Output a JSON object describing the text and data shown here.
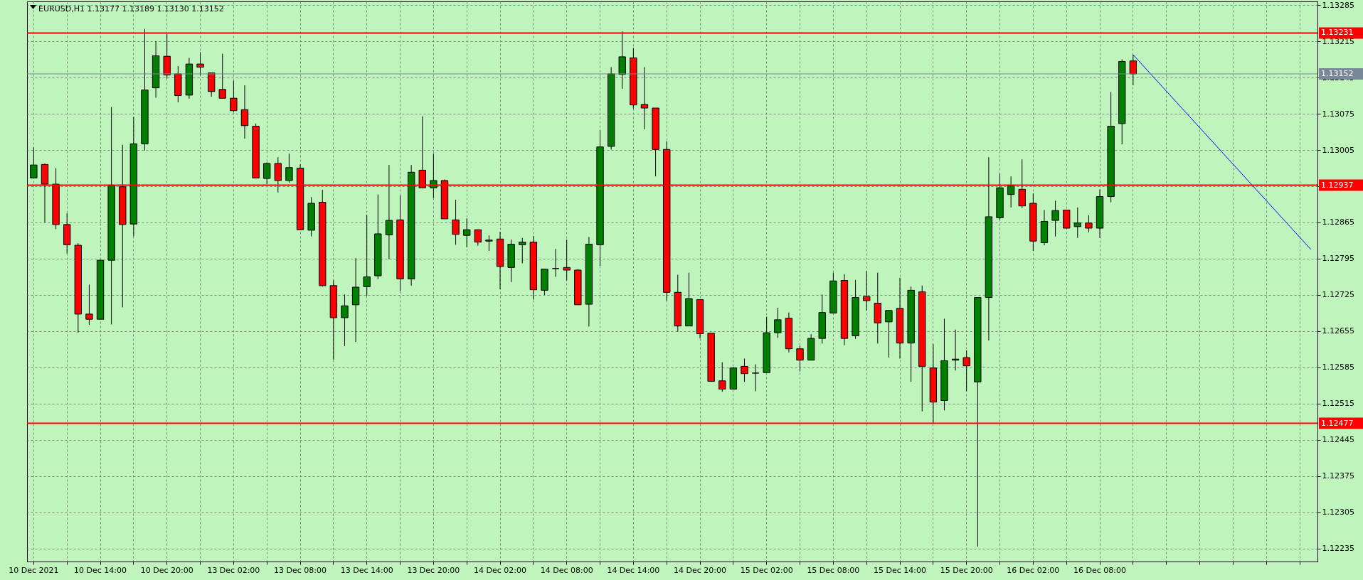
{
  "chart_data": {
    "type": "candlestick",
    "title": "EURUSD,H1  1.13177 1.13189 1.13130 1.13152",
    "categories": [
      "10 Dec 2021",
      null,
      null,
      null,
      null,
      null,
      "10 Dec 14:00",
      null,
      null,
      null,
      null,
      null,
      "10 Dec 20:00",
      null,
      null,
      null,
      null,
      null,
      "13 Dec 02:00",
      null,
      null,
      null,
      null,
      null,
      "13 Dec 08:00",
      null,
      null,
      null,
      null,
      null,
      "13 Dec 14:00",
      null,
      null,
      null,
      null,
      null,
      "13 Dec 20:00",
      null,
      null,
      null,
      null,
      null,
      "14 Dec 02:00",
      null,
      null,
      null,
      null,
      null,
      "14 Dec 08:00",
      null,
      null,
      null,
      null,
      null,
      "14 Dec 14:00",
      null,
      null,
      null,
      null,
      null,
      "14 Dec 20:00",
      null,
      null,
      null,
      null,
      null,
      "15 Dec 02:00",
      null,
      null,
      null,
      null,
      null,
      "15 Dec 08:00",
      null,
      null,
      null,
      null,
      null,
      "15 Dec 14:00",
      null,
      null,
      null,
      null,
      null,
      "15 Dec 20:00",
      null,
      null,
      null,
      null,
      null,
      "16 Dec 02:00",
      null,
      null,
      null,
      null,
      null,
      "16 Dec 08:00",
      null,
      null,
      null,
      null,
      null,
      null,
      null,
      null,
      null,
      null,
      null,
      null,
      null,
      null,
      null,
      null,
      null,
      null,
      null
    ],
    "ohlc": [
      [
        1.12951,
        1.1301,
        1.12951,
        1.12976
      ],
      [
        1.12977,
        1.12979,
        1.12865,
        1.12939
      ],
      [
        1.12939,
        1.1297,
        1.12852,
        1.12861
      ],
      [
        1.12861,
        1.12883,
        1.12805,
        1.12822
      ],
      [
        1.12821,
        1.12825,
        1.12652,
        1.12688
      ],
      [
        1.12688,
        1.12745,
        1.12667,
        1.12678
      ],
      [
        1.12678,
        1.12792,
        1.12678,
        1.12792
      ],
      [
        1.12792,
        1.13088,
        1.12668,
        1.12936
      ],
      [
        1.12934,
        1.13015,
        1.12701,
        1.12861
      ],
      [
        1.12862,
        1.13069,
        1.12838,
        1.13017
      ],
      [
        1.13017,
        1.13239,
        1.13004,
        1.13121
      ],
      [
        1.13125,
        1.13215,
        1.13106,
        1.13187
      ],
      [
        1.13186,
        1.13229,
        1.13143,
        1.1315
      ],
      [
        1.13152,
        1.13167,
        1.13097,
        1.1311
      ],
      [
        1.13111,
        1.13183,
        1.13104,
        1.13171
      ],
      [
        1.13171,
        1.13194,
        1.13149,
        1.13165
      ],
      [
        1.13154,
        1.13154,
        1.13108,
        1.13118
      ],
      [
        1.13122,
        1.13191,
        1.13105,
        1.13105
      ],
      [
        1.13105,
        1.13139,
        1.13078,
        1.13081
      ],
      [
        1.13083,
        1.1313,
        1.13027,
        1.13052
      ],
      [
        1.13051,
        1.13056,
        1.12951,
        1.12951
      ],
      [
        1.1295,
        1.12981,
        1.12939,
        1.12979
      ],
      [
        1.12979,
        1.12991,
        1.12923,
        1.12946
      ],
      [
        1.12946,
        1.12998,
        1.12942,
        1.12971
      ],
      [
        1.1297,
        1.12977,
        1.12851,
        1.12851
      ],
      [
        1.1285,
        1.12914,
        1.12838,
        1.12902
      ],
      [
        1.12904,
        1.12928,
        1.12741,
        1.12743
      ],
      [
        1.12743,
        1.12753,
        1.126,
        1.12681
      ],
      [
        1.12681,
        1.12726,
        1.12626,
        1.12704
      ],
      [
        1.12706,
        1.12796,
        1.12634,
        1.1274
      ],
      [
        1.12741,
        1.1288,
        1.12723,
        1.1276
      ],
      [
        1.12762,
        1.12919,
        1.12756,
        1.12843
      ],
      [
        1.12841,
        1.12976,
        1.12794,
        1.12869
      ],
      [
        1.1287,
        1.12917,
        1.12732,
        1.12756
      ],
      [
        1.12756,
        1.12976,
        1.12743,
        1.12962
      ],
      [
        1.12966,
        1.1307,
        1.12932,
        1.12932
      ],
      [
        1.12932,
        1.12998,
        1.12912,
        1.12946
      ],
      [
        1.12946,
        1.12948,
        1.12872,
        1.12872
      ],
      [
        1.1287,
        1.12909,
        1.12822,
        1.12842
      ],
      [
        1.1284,
        1.12873,
        1.12817,
        1.12851
      ],
      [
        1.12851,
        1.12851,
        1.1282,
        1.12827
      ],
      [
        1.12829,
        1.1284,
        1.1281,
        1.12831
      ],
      [
        1.12833,
        1.12847,
        1.12736,
        1.1278
      ],
      [
        1.12778,
        1.12832,
        1.1275,
        1.12823
      ],
      [
        1.12822,
        1.12835,
        1.12786,
        1.12827
      ],
      [
        1.12827,
        1.12839,
        1.12716,
        1.12735
      ],
      [
        1.12734,
        1.12775,
        1.12725,
        1.12775
      ],
      [
        1.12776,
        1.12814,
        1.1276,
        1.12776
      ],
      [
        1.12778,
        1.12832,
        1.12753,
        1.12773
      ],
      [
        1.12773,
        1.12775,
        1.12706,
        1.12706
      ],
      [
        1.12707,
        1.12837,
        1.12664,
        1.12823
      ],
      [
        1.12822,
        1.13043,
        1.12781,
        1.13011
      ],
      [
        1.13012,
        1.13165,
        1.13006,
        1.13152
      ],
      [
        1.13151,
        1.13234,
        1.13123,
        1.13185
      ],
      [
        1.13183,
        1.13202,
        1.13085,
        1.13092
      ],
      [
        1.13093,
        1.13165,
        1.13045,
        1.13086
      ],
      [
        1.13086,
        1.13086,
        1.12954,
        1.13006
      ],
      [
        1.13006,
        1.13022,
        1.12714,
        1.1273
      ],
      [
        1.1273,
        1.12764,
        1.12654,
        1.12665
      ],
      [
        1.12665,
        1.12768,
        1.12665,
        1.12718
      ],
      [
        1.12716,
        1.12716,
        1.12641,
        1.1265
      ],
      [
        1.12651,
        1.12651,
        1.12558,
        1.12558
      ],
      [
        1.12559,
        1.12595,
        1.12538,
        1.12543
      ],
      [
        1.12543,
        1.12586,
        1.12543,
        1.12584
      ],
      [
        1.12587,
        1.12602,
        1.12557,
        1.12573
      ],
      [
        1.12574,
        1.12591,
        1.12539,
        1.12574
      ],
      [
        1.12575,
        1.12683,
        1.12575,
        1.12652
      ],
      [
        1.12652,
        1.127,
        1.12642,
        1.12677
      ],
      [
        1.1268,
        1.12691,
        1.12614,
        1.12621
      ],
      [
        1.12621,
        1.12627,
        1.12577,
        1.12599
      ],
      [
        1.12599,
        1.12649,
        1.12599,
        1.12641
      ],
      [
        1.12641,
        1.12726,
        1.12631,
        1.12691
      ],
      [
        1.1269,
        1.12768,
        1.1269,
        1.12752
      ],
      [
        1.12753,
        1.12765,
        1.12628,
        1.12641
      ],
      [
        1.12646,
        1.12754,
        1.1264,
        1.1272
      ],
      [
        1.12722,
        1.12771,
        1.12695,
        1.12714
      ],
      [
        1.12709,
        1.12768,
        1.12631,
        1.12671
      ],
      [
        1.12673,
        1.12695,
        1.12604,
        1.12695
      ],
      [
        1.12699,
        1.12758,
        1.12602,
        1.12632
      ],
      [
        1.12632,
        1.12741,
        1.12557,
        1.12734
      ],
      [
        1.12731,
        1.12743,
        1.125,
        1.12587
      ],
      [
        1.12584,
        1.1263,
        1.12477,
        1.12518
      ],
      [
        1.12521,
        1.12679,
        1.12502,
        1.12598
      ],
      [
        1.12599,
        1.12658,
        1.12579,
        1.12601
      ],
      [
        1.12604,
        1.12618,
        1.12539,
        1.12588
      ],
      [
        1.12557,
        1.1272,
        1.12239,
        1.1272
      ],
      [
        1.1272,
        1.12991,
        1.12637,
        1.12876
      ],
      [
        1.12874,
        1.12959,
        1.1287,
        1.12932
      ],
      [
        1.12919,
        1.12954,
        1.12894,
        1.12936
      ],
      [
        1.12929,
        1.12987,
        1.12893,
        1.12897
      ],
      [
        1.12902,
        1.12921,
        1.1281,
        1.12829
      ],
      [
        1.12826,
        1.12889,
        1.12821,
        1.12867
      ],
      [
        1.12869,
        1.12907,
        1.12838,
        1.12888
      ],
      [
        1.12889,
        1.12889,
        1.12854,
        1.12854
      ],
      [
        1.12857,
        1.12894,
        1.12835,
        1.12864
      ],
      [
        1.12864,
        1.12879,
        1.12846,
        1.12854
      ],
      [
        1.12854,
        1.12929,
        1.12835,
        1.12915
      ],
      [
        1.12915,
        1.13117,
        1.12904,
        1.13051
      ],
      [
        1.13056,
        1.1318,
        1.13016,
        1.13176
      ],
      [
        1.13177,
        1.13189,
        1.1313,
        1.13152
      ],
      null,
      null,
      null,
      null,
      null,
      null,
      null,
      null,
      null,
      null,
      null,
      null,
      null,
      null,
      null,
      null
    ],
    "colors": [
      "#008000",
      "#ff0000",
      "#ff0000",
      "#ff0000",
      "#ff0000",
      "#ff0000",
      "#008000",
      "#008000",
      "#ff0000",
      "#008000",
      "#008000",
      "#008000",
      "#ff0000",
      "#ff0000",
      "#008000",
      "#ff0000",
      "#ff0000",
      "#ff0000",
      "#ff0000",
      "#ff0000",
      "#ff0000",
      "#008000",
      "#ff0000",
      "#008000",
      "#ff0000",
      "#008000",
      "#ff0000",
      "#ff0000",
      "#008000",
      "#008000",
      "#008000",
      "#008000",
      "#008000",
      "#ff0000",
      "#008000",
      "#ff0000",
      "#008000",
      "#ff0000",
      "#ff0000",
      "#008000",
      "#ff0000",
      "#008000",
      "#ff0000",
      "#008000",
      "#008000",
      "#ff0000",
      "#008000",
      "#000000",
      "#ff0000",
      "#ff0000",
      "#008000",
      "#008000",
      "#008000",
      "#008000",
      "#ff0000",
      "#ff0000",
      "#ff0000",
      "#ff0000",
      "#ff0000",
      "#008000",
      "#ff0000",
      "#ff0000",
      "#ff0000",
      "#008000",
      "#ff0000",
      "#000000",
      "#008000",
      "#008000",
      "#ff0000",
      "#ff0000",
      "#008000",
      "#008000",
      "#008000",
      "#ff0000",
      "#008000",
      "#ff0000",
      "#ff0000",
      "#008000",
      "#ff0000",
      "#008000",
      "#ff0000",
      "#ff0000",
      "#008000",
      "#008000",
      "#ff0000",
      "#008000",
      "#008000",
      "#008000",
      "#008000",
      "#ff0000",
      "#ff0000",
      "#008000",
      "#008000",
      "#ff0000",
      "#008000",
      "#ff0000",
      "#008000",
      "#008000",
      "#008000",
      "#ff0000",
      null,
      null,
      null,
      null,
      null,
      null,
      null,
      null,
      null,
      null,
      null,
      null,
      null,
      null,
      null,
      null
    ],
    "series": [
      {
        "type": "line",
        "color": "#0000ff",
        "values": [
          null,
          null,
          null,
          null,
          null,
          null,
          null,
          null,
          null,
          null,
          null,
          null,
          null,
          null,
          null,
          null,
          null,
          null,
          null,
          null,
          null,
          null,
          null,
          null,
          null,
          null,
          null,
          null,
          null,
          null,
          null,
          null,
          null,
          null,
          null,
          null,
          null,
          null,
          null,
          null,
          null,
          null,
          null,
          null,
          null,
          null,
          null,
          null,
          null,
          null,
          null,
          null,
          null,
          null,
          null,
          null,
          null,
          null,
          null,
          null,
          null,
          null,
          null,
          null,
          null,
          null,
          null,
          null,
          null,
          null,
          null,
          null,
          null,
          null,
          null,
          null,
          null,
          null,
          null,
          null,
          null,
          null,
          null,
          null,
          null,
          null,
          null,
          null,
          null,
          null,
          null,
          null,
          null,
          null,
          null,
          null,
          null,
          null,
          null,
          1.13189,
          null,
          null,
          null,
          null,
          null,
          null,
          null,
          null,
          null,
          null,
          null,
          null,
          null,
          null,
          null,
          1.12813
        ]
      }
    ],
    "ylim": [
      1.1221,
      1.13292
    ],
    "yticks": [
      1.12235,
      1.12305,
      1.12375,
      1.12445,
      1.12515,
      1.12585,
      1.12655,
      1.12725,
      1.12795,
      1.12865,
      {
        "value": 1.12935,
        "label": null
      },
      1.13005,
      1.13075,
      1.13145,
      1.13215,
      1.13285
    ],
    "grid": true,
    "ref_lines": [
      {
        "axis": "y",
        "value": 1.13231,
        "label": "1.13231",
        "color": "#ff0000"
      },
      {
        "axis": "y",
        "value": 1.13152,
        "label": "1.13152",
        "color": "#778899"
      },
      {
        "axis": "y",
        "value": 1.12937,
        "label": "1.12937",
        "color": "#ff0000"
      },
      {
        "axis": "y",
        "value": 1.12477,
        "label": "1.12477",
        "color": "#ff0000"
      }
    ]
  }
}
